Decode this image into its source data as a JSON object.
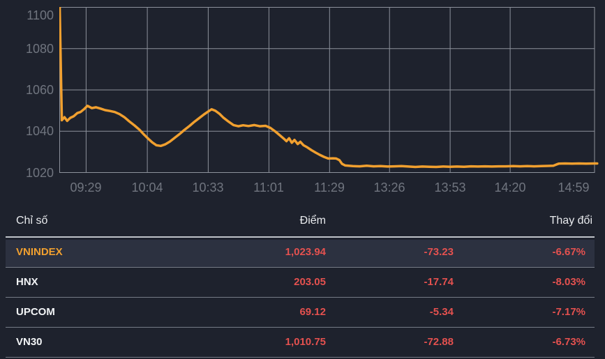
{
  "colors": {
    "background": "#1e222d",
    "grid": "#8d929c",
    "axis_label": "#70757f",
    "line_orange": "#f1a02f",
    "value_red": "#e4514f",
    "row_highlight": "#2c3140",
    "text_primary": "#f2f4f6",
    "row_separator": "#767b86",
    "header_separator": "#bfc3c9"
  },
  "chart_data": {
    "type": "line",
    "title": "",
    "xlabel": "",
    "ylabel": "",
    "legend": "none",
    "grid": true,
    "y_range": [
      1020,
      1100
    ],
    "y_ticks": [
      1100,
      1080,
      1060,
      1040,
      1020
    ],
    "x_ticks": [
      {
        "label": "09:29",
        "f": 0.0495
      },
      {
        "label": "10:04",
        "f": 0.1639
      },
      {
        "label": "10:33",
        "f": 0.2777
      },
      {
        "label": "11:01",
        "f": 0.3912
      },
      {
        "label": "11:29",
        "f": 0.5046
      },
      {
        "label": "13:26",
        "f": 0.6167
      },
      {
        "label": "13:53",
        "f": 0.7301
      },
      {
        "label": "14:20",
        "f": 0.8423
      },
      {
        "label": "14:59",
        "f": 1.0
      }
    ],
    "series": [
      {
        "name": "VNINDEX",
        "color": "#f1a02f",
        "points": [
          [
            0.0,
            1101.0
          ],
          [
            0.004,
            1045.3
          ],
          [
            0.009,
            1046.8
          ],
          [
            0.014,
            1045.0
          ],
          [
            0.02,
            1046.5
          ],
          [
            0.026,
            1047.2
          ],
          [
            0.033,
            1048.8
          ],
          [
            0.039,
            1049.3
          ],
          [
            0.046,
            1050.8
          ],
          [
            0.052,
            1052.3
          ],
          [
            0.06,
            1051.2
          ],
          [
            0.068,
            1051.6
          ],
          [
            0.076,
            1051.0
          ],
          [
            0.085,
            1050.2
          ],
          [
            0.094,
            1049.8
          ],
          [
            0.103,
            1049.3
          ],
          [
            0.112,
            1048.3
          ],
          [
            0.121,
            1046.8
          ],
          [
            0.13,
            1044.8
          ],
          [
            0.14,
            1042.8
          ],
          [
            0.149,
            1040.8
          ],
          [
            0.158,
            1038.3
          ],
          [
            0.166,
            1036.3
          ],
          [
            0.173,
            1034.6
          ],
          [
            0.181,
            1033.2
          ],
          [
            0.189,
            1032.9
          ],
          [
            0.197,
            1033.6
          ],
          [
            0.206,
            1035.0
          ],
          [
            0.215,
            1036.8
          ],
          [
            0.224,
            1038.6
          ],
          [
            0.233,
            1040.6
          ],
          [
            0.243,
            1042.6
          ],
          [
            0.252,
            1044.6
          ],
          [
            0.261,
            1046.4
          ],
          [
            0.27,
            1048.2
          ],
          [
            0.278,
            1049.6
          ],
          [
            0.284,
            1050.6
          ],
          [
            0.291,
            1049.9
          ],
          [
            0.299,
            1048.4
          ],
          [
            0.306,
            1046.6
          ],
          [
            0.316,
            1044.6
          ],
          [
            0.325,
            1043.0
          ],
          [
            0.334,
            1042.4
          ],
          [
            0.343,
            1042.9
          ],
          [
            0.353,
            1042.5
          ],
          [
            0.364,
            1043.0
          ],
          [
            0.374,
            1042.4
          ],
          [
            0.385,
            1042.6
          ],
          [
            0.394,
            1041.6
          ],
          [
            0.403,
            1039.9
          ],
          [
            0.411,
            1038.2
          ],
          [
            0.419,
            1036.4
          ],
          [
            0.424,
            1035.2
          ],
          [
            0.429,
            1036.6
          ],
          [
            0.434,
            1034.4
          ],
          [
            0.439,
            1035.8
          ],
          [
            0.445,
            1033.8
          ],
          [
            0.45,
            1034.9
          ],
          [
            0.456,
            1033.2
          ],
          [
            0.463,
            1032.2
          ],
          [
            0.471,
            1030.8
          ],
          [
            0.479,
            1029.6
          ],
          [
            0.486,
            1028.6
          ],
          [
            0.494,
            1027.6
          ],
          [
            0.502,
            1026.8
          ],
          [
            0.511,
            1026.9
          ],
          [
            0.517,
            1026.8
          ],
          [
            0.523,
            1026.0
          ],
          [
            0.528,
            1024.2
          ],
          [
            0.534,
            1023.4
          ],
          [
            0.548,
            1023.1
          ],
          [
            0.561,
            1023.0
          ],
          [
            0.574,
            1023.3
          ],
          [
            0.587,
            1023.0
          ],
          [
            0.6,
            1023.1
          ],
          [
            0.613,
            1022.9
          ],
          [
            0.626,
            1023.0
          ],
          [
            0.639,
            1023.1
          ],
          [
            0.652,
            1022.9
          ],
          [
            0.665,
            1022.7
          ],
          [
            0.678,
            1022.9
          ],
          [
            0.691,
            1022.8
          ],
          [
            0.704,
            1022.7
          ],
          [
            0.717,
            1022.9
          ],
          [
            0.73,
            1022.8
          ],
          [
            0.743,
            1022.9
          ],
          [
            0.756,
            1022.8
          ],
          [
            0.769,
            1023.0
          ],
          [
            0.782,
            1022.9
          ],
          [
            0.795,
            1023.0
          ],
          [
            0.808,
            1022.9
          ],
          [
            0.821,
            1023.0
          ],
          [
            0.834,
            1023.0
          ],
          [
            0.848,
            1023.1
          ],
          [
            0.861,
            1023.0
          ],
          [
            0.874,
            1023.1
          ],
          [
            0.887,
            1023.0
          ],
          [
            0.9,
            1023.1
          ],
          [
            0.913,
            1023.2
          ],
          [
            0.923,
            1023.3
          ],
          [
            0.928,
            1023.8
          ],
          [
            0.933,
            1024.3
          ],
          [
            0.945,
            1024.4
          ],
          [
            0.958,
            1024.3
          ],
          [
            0.971,
            1024.4
          ],
          [
            0.984,
            1024.3
          ],
          [
            1.0,
            1024.4
          ],
          [
            1.005,
            1024.4
          ]
        ]
      }
    ]
  },
  "table": {
    "header": {
      "index": "Chỉ số",
      "points": "Điểm",
      "change": "Thay đổi"
    },
    "rows": [
      {
        "name": "VNINDEX",
        "points": "1,023.94",
        "change": "-73.23",
        "pct": "-6.67%",
        "active": true
      },
      {
        "name": "HNX",
        "points": "203.05",
        "change": "-17.74",
        "pct": "-8.03%",
        "active": false
      },
      {
        "name": "UPCOM",
        "points": "69.12",
        "change": "-5.34",
        "pct": "-7.17%",
        "active": false
      },
      {
        "name": "VN30",
        "points": "1,010.75",
        "change": "-72.88",
        "pct": "-6.73%",
        "active": false
      }
    ]
  }
}
